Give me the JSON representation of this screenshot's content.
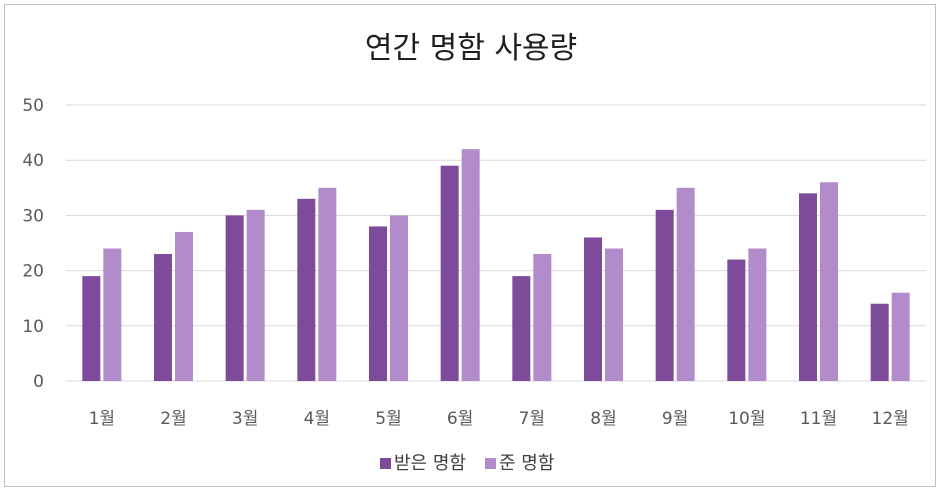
{
  "chart_data": {
    "type": "bar",
    "title": "연간 명함 사용량",
    "categories": [
      "1월",
      "2월",
      "3월",
      "4월",
      "5월",
      "6월",
      "7월",
      "8월",
      "9월",
      "10월",
      "11월",
      "12월"
    ],
    "series": [
      {
        "name": "받은 명함",
        "color": "#7e4a9a",
        "values": [
          19,
          23,
          30,
          33,
          28,
          39,
          19,
          26,
          31,
          22,
          34,
          14
        ]
      },
      {
        "name": "준 명함",
        "color": "#b28bcb",
        "values": [
          24,
          27,
          31,
          35,
          30,
          42,
          23,
          24,
          35,
          24,
          36,
          16
        ]
      }
    ],
    "ylim": [
      0,
      50
    ],
    "yticks": [
      0,
      10,
      20,
      30,
      40,
      50
    ],
    "grid": true,
    "legend": "bottom"
  }
}
